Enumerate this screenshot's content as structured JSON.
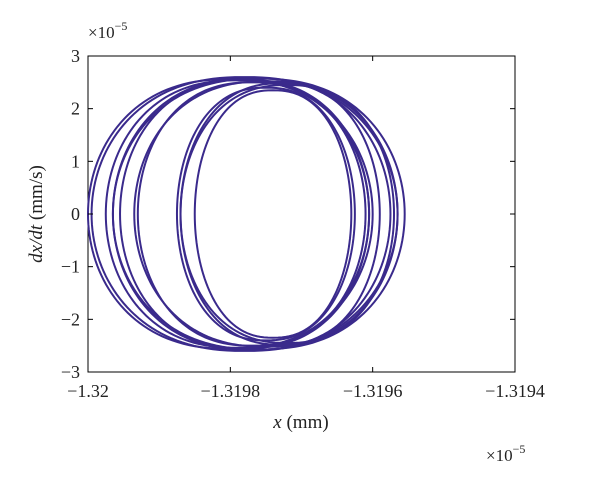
{
  "chart_data": {
    "type": "line",
    "title": "",
    "xlabel": {
      "var": "x",
      "unit": " (mm)"
    },
    "ylabel": {
      "var": "dx/dt",
      "unit": " (mm/s)"
    },
    "x_multiplier": "×10",
    "x_multiplier_exp": "−5",
    "y_multiplier": "×10",
    "y_multiplier_exp": "−5",
    "xlim": [
      -1.32,
      -1.3194
    ],
    "ylim": [
      -3,
      3
    ],
    "xticks": [
      -1.32,
      -1.3198,
      -1.3196,
      -1.3194
    ],
    "xtick_labels": [
      "−1.32",
      "−1.3198",
      "−1.3196",
      "−1.3194"
    ],
    "yticks": [
      -3,
      -2,
      -1,
      0,
      1,
      2,
      3
    ],
    "ytick_labels": [
      "−3",
      "−2",
      "−1",
      "0",
      "1",
      "2",
      "3"
    ],
    "grid": false,
    "series": [
      {
        "color": "#3a2a8c",
        "style": "phase-portrait",
        "orbits": [
          {
            "cx": -1.31977,
            "rx": 0.00016,
            "ry": 2.5
          },
          {
            "cx": -1.31978,
            "rx": 0.000175,
            "ry": 2.55
          },
          {
            "cx": -1.31977,
            "rx": 0.000195,
            "ry": 2.58
          },
          {
            "cx": -1.31978,
            "rx": 0.000215,
            "ry": 2.6
          },
          {
            "cx": -1.31975,
            "rx": 0.000125,
            "ry": 2.4
          },
          {
            "cx": -1.31974,
            "rx": 0.00011,
            "ry": 2.35
          },
          {
            "cx": -1.31973,
            "rx": 0.00014,
            "ry": 2.48
          },
          {
            "cx": -1.3198,
            "rx": 0.0002,
            "ry": 2.56
          },
          {
            "cx": -1.31975,
            "rx": 0.000185,
            "ry": 2.52
          },
          {
            "cx": -1.31972,
            "rx": 0.00015,
            "ry": 2.45
          },
          {
            "cx": -1.31979,
            "rx": 0.000185,
            "ry": 2.54
          },
          {
            "cx": -1.31976,
            "rx": 0.000205,
            "ry": 2.57
          }
        ]
      }
    ]
  }
}
